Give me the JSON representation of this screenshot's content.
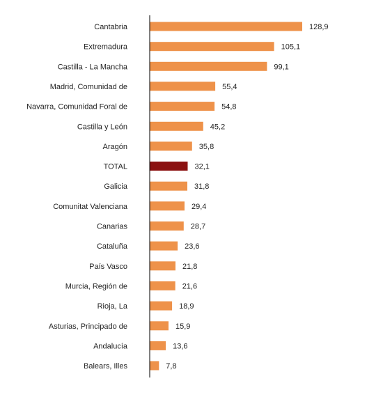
{
  "chart_data": {
    "type": "bar",
    "orientation": "horizontal",
    "categories": [
      "Cantabria",
      "Extremadura",
      "Castilla - La Mancha",
      "Madrid, Comunidad de",
      "Navarra, Comunidad Foral de",
      "Castilla y León",
      "Aragón",
      "TOTAL",
      "Galicia",
      "Comunitat Valenciana",
      "Canarias",
      "Cataluña",
      "País Vasco",
      "Murcia, Región de",
      "Rioja, La",
      "Asturias, Principado de",
      "Andalucía",
      "Balears, Illes"
    ],
    "values": [
      128.9,
      105.1,
      99.1,
      55.4,
      54.8,
      45.2,
      35.8,
      32.1,
      31.8,
      29.4,
      28.7,
      23.6,
      21.8,
      21.6,
      18.9,
      15.9,
      13.6,
      7.8
    ],
    "value_labels": [
      "128,9",
      "105,1",
      "99,1",
      "55,4",
      "54,8",
      "45,2",
      "35,8",
      "32,1",
      "31,8",
      "29,4",
      "28,7",
      "23,6",
      "21,8",
      "21,6",
      "18,9",
      "15,9",
      "13,6",
      "7,8"
    ],
    "highlight_category": "TOTAL",
    "colors": {
      "bar": "#ee924a",
      "highlight": "#8b1111",
      "axis": "#000000"
    },
    "title": "",
    "xlabel": "",
    "ylabel": "",
    "grid": false,
    "legend": "none"
  }
}
